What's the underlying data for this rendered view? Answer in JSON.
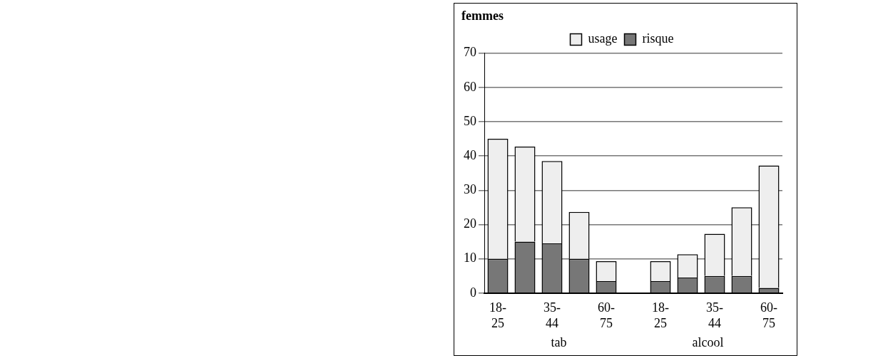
{
  "chart_data": {
    "type": "bar",
    "title": "femmes",
    "stacked": true,
    "categories": [
      "18-25",
      null,
      "35-44",
      null,
      "60-75",
      null,
      "18-25",
      null,
      "35-44",
      null,
      "60-75"
    ],
    "series": [
      {
        "name": "risque",
        "color": "#777777",
        "values": [
          10,
          15,
          14.5,
          10,
          3.5,
          null,
          3.5,
          4.5,
          5,
          5,
          1.5
        ]
      },
      {
        "name": "usage",
        "color": "#eeeeee",
        "values": [
          35,
          27.7,
          24,
          13.7,
          5.8,
          null,
          5.8,
          6.8,
          12.3,
          20,
          35.7
        ]
      }
    ],
    "ylim": [
      0,
      70
    ],
    "yticks": [
      0,
      10,
      20,
      30,
      40,
      50,
      60,
      70
    ],
    "grid": "y",
    "legend": "top",
    "annotations": [
      "tab",
      "alcool"
    ]
  }
}
